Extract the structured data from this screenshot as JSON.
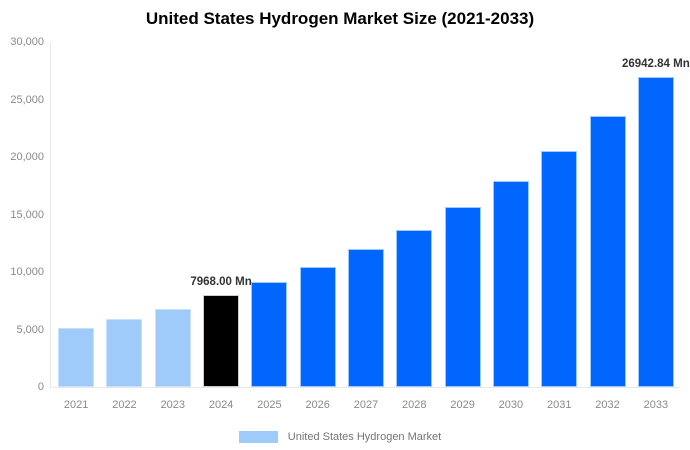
{
  "colors": {
    "historical": "#9ecbfa",
    "historical_border": "#c8e0fc",
    "base_year": "#000000",
    "base_year_border": "#cccccc",
    "forecast": "#0066fd",
    "forecast_border": "#9ecbfa",
    "axis_line": "#e8e8e8",
    "axis_text": "#8a8a8a",
    "data_label_text": "#333333",
    "legend_text": "#757575",
    "title_text": "#000000"
  },
  "legend": {
    "label": "United States Hydrogen Market",
    "swatch_color_role": "historical"
  },
  "chart_data": {
    "type": "bar",
    "title": "United States Hydrogen Market Size (2021-2033)",
    "unit": "Mn",
    "categories": [
      "2021",
      "2022",
      "2023",
      "2024",
      "2025",
      "2026",
      "2027",
      "2028",
      "2029",
      "2030",
      "2031",
      "2032",
      "2033"
    ],
    "values": [
      5100,
      5880,
      6760,
      7968,
      9123,
      10445,
      11959,
      13693,
      15678,
      17950,
      20553,
      23532,
      26942.84
    ],
    "bar_roles": [
      "historical",
      "historical",
      "historical",
      "base_year",
      "forecast",
      "forecast",
      "forecast",
      "forecast",
      "forecast",
      "forecast",
      "forecast",
      "forecast",
      "forecast"
    ],
    "data_labels": [
      {
        "index": 3,
        "text": "7968.00 Mn"
      },
      {
        "index": 12,
        "text": "26942.84 Mn"
      }
    ],
    "y_ticks": [
      {
        "value": 0,
        "label": "0"
      },
      {
        "value": 5000,
        "label": "5,000"
      },
      {
        "value": 10000,
        "label": "10,000"
      },
      {
        "value": 15000,
        "label": "15,000"
      },
      {
        "value": 20000,
        "label": "20,000"
      },
      {
        "value": 25000,
        "label": "25,000"
      },
      {
        "value": 30000,
        "label": "30,000"
      }
    ],
    "ylim": [
      0,
      30000
    ],
    "xlabel": "",
    "ylabel": "",
    "grid": false,
    "legend_entries": [
      "United States Hydrogen Market"
    ],
    "legend_position": "bottom"
  }
}
